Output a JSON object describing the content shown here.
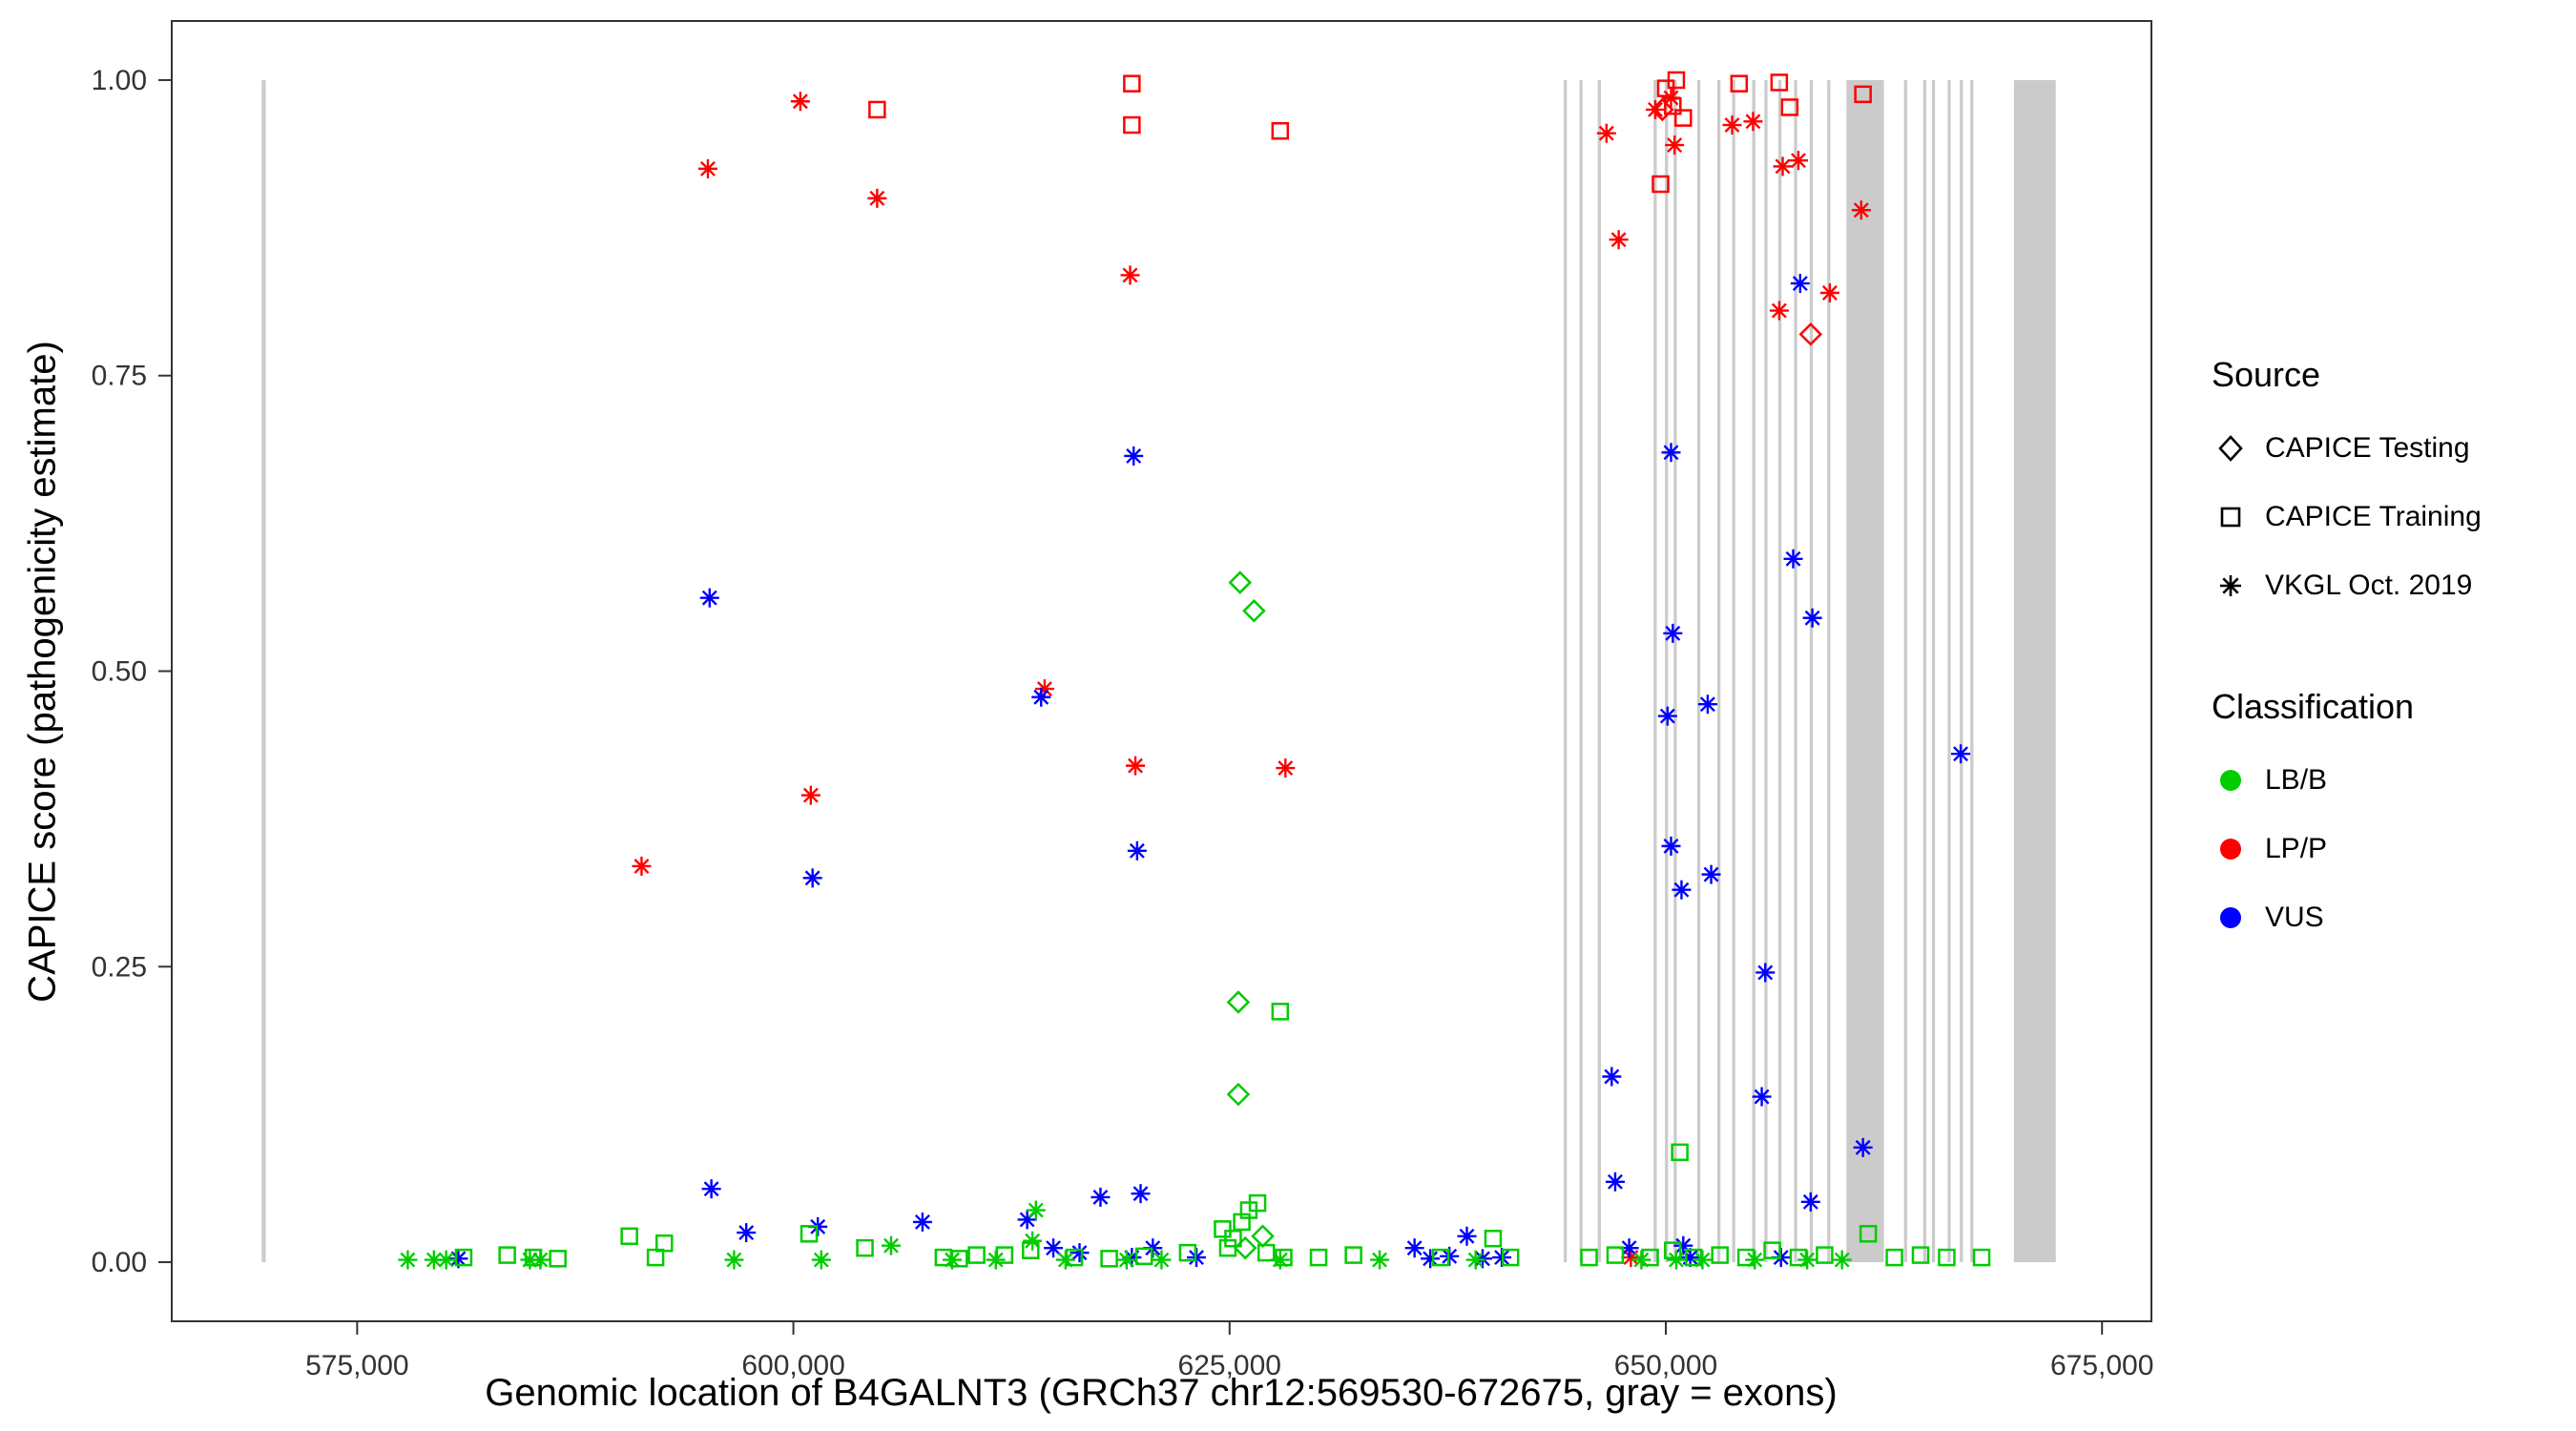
{
  "chart_data": {
    "type": "scatter",
    "title": "",
    "xlabel": "Genomic location of B4GALNT3 (GRCh37 chr12:569530-672675, gray = exons)",
    "ylabel": "CAPICE score (pathogenicity estimate)",
    "xlim": [
      564373,
      677832
    ],
    "ylim": [
      -0.05,
      1.05
    ],
    "grid": false,
    "legend_position": "right",
    "xticks": [
      {
        "v": 575000,
        "label": "575,000"
      },
      {
        "v": 600000,
        "label": "600,000"
      },
      {
        "v": 625000,
        "label": "625,000"
      },
      {
        "v": 650000,
        "label": "650,000"
      },
      {
        "v": 675000,
        "label": "675,000"
      }
    ],
    "yticks": [
      {
        "v": 0.0,
        "label": "0.00"
      },
      {
        "v": 0.25,
        "label": "0.25"
      },
      {
        "v": 0.5,
        "label": "0.50"
      },
      {
        "v": 0.75,
        "label": "0.75"
      },
      {
        "v": 1.0,
        "label": "1.00"
      }
    ],
    "exon_color": "#CBCBCB",
    "exons": [
      [
        569530,
        569760
      ],
      [
        644150,
        644330
      ],
      [
        645050,
        645230
      ],
      [
        646100,
        646280
      ],
      [
        649300,
        649480
      ],
      [
        649950,
        650130
      ],
      [
        650450,
        650630
      ],
      [
        651800,
        651980
      ],
      [
        652950,
        653130
      ],
      [
        653800,
        653980
      ],
      [
        654950,
        655130
      ],
      [
        655650,
        655830
      ],
      [
        656450,
        656630
      ],
      [
        657350,
        657530
      ],
      [
        658250,
        658430
      ],
      [
        659250,
        659430
      ],
      [
        660350,
        662500
      ],
      [
        663650,
        663830
      ],
      [
        664750,
        664930
      ],
      [
        665250,
        665430
      ],
      [
        666150,
        666330
      ],
      [
        666850,
        667030
      ],
      [
        667450,
        667630
      ],
      [
        669950,
        672350
      ]
    ],
    "legend": {
      "source": {
        "title": "Source",
        "items": [
          {
            "label": "CAPICE Testing",
            "shape": "diamond"
          },
          {
            "label": "CAPICE Training",
            "shape": "square"
          },
          {
            "label": "VKGL Oct. 2019",
            "shape": "asterisk"
          }
        ]
      },
      "classification": {
        "title": "Classification",
        "items": [
          {
            "label": "LB/B",
            "color": "#00CC00"
          },
          {
            "label": "LP/P",
            "color": "#FF0000"
          },
          {
            "label": "VUS",
            "color": "#0000FF"
          }
        ]
      }
    },
    "point_encoding": {
      "source_index": [
        "CAPICE Testing",
        "CAPICE Training",
        "VKGL Oct. 2019"
      ],
      "class_index": [
        "LB/B",
        "LP/P",
        "VUS"
      ],
      "format": "[genomic_location, capice_score, source_index, class_index]"
    },
    "points": [
      [
        595100,
        0.925,
        2,
        1
      ],
      [
        600400,
        0.982,
        2,
        1
      ],
      [
        604800,
        0.9,
        2,
        1
      ],
      [
        619300,
        0.835,
        2,
        1
      ],
      [
        614400,
        0.485,
        2,
        1
      ],
      [
        619600,
        0.42,
        2,
        1
      ],
      [
        628200,
        0.418,
        2,
        1
      ],
      [
        601000,
        0.395,
        2,
        1
      ],
      [
        591300,
        0.335,
        2,
        1
      ],
      [
        646600,
        0.955,
        2,
        1
      ],
      [
        647300,
        0.865,
        2,
        1
      ],
      [
        649400,
        0.975,
        2,
        1
      ],
      [
        650300,
        0.985,
        2,
        1
      ],
      [
        650500,
        0.945,
        2,
        1
      ],
      [
        653800,
        0.962,
        2,
        1
      ],
      [
        655000,
        0.965,
        2,
        1
      ],
      [
        656700,
        0.927,
        2,
        1
      ],
      [
        657600,
        0.932,
        2,
        1
      ],
      [
        656500,
        0.805,
        2,
        1
      ],
      [
        659400,
        0.82,
        2,
        1
      ],
      [
        661200,
        0.89,
        2,
        1
      ],
      [
        648000,
        0.004,
        2,
        1
      ],
      [
        604800,
        0.975,
        1,
        1
      ],
      [
        619400,
        0.997,
        1,
        1
      ],
      [
        619400,
        0.962,
        1,
        1
      ],
      [
        627900,
        0.957,
        1,
        1
      ],
      [
        650000,
        0.993,
        1,
        1
      ],
      [
        650600,
        1.0,
        1,
        1
      ],
      [
        650400,
        0.978,
        1,
        1
      ],
      [
        649700,
        0.912,
        1,
        1
      ],
      [
        651000,
        0.968,
        1,
        1
      ],
      [
        654200,
        0.997,
        1,
        1
      ],
      [
        656500,
        0.998,
        1,
        1
      ],
      [
        657100,
        0.977,
        1,
        1
      ],
      [
        661300,
        0.988,
        1,
        1
      ],
      [
        658300,
        0.785,
        0,
        1
      ],
      [
        649800,
        0.975,
        0,
        1
      ],
      [
        595200,
        0.562,
        2,
        2
      ],
      [
        619500,
        0.682,
        2,
        2
      ],
      [
        614200,
        0.478,
        2,
        2
      ],
      [
        619700,
        0.348,
        2,
        2
      ],
      [
        601100,
        0.325,
        2,
        2
      ],
      [
        595300,
        0.062,
        2,
        2
      ],
      [
        650300,
        0.685,
        2,
        2
      ],
      [
        657700,
        0.828,
        2,
        2
      ],
      [
        657300,
        0.595,
        2,
        2
      ],
      [
        658400,
        0.545,
        2,
        2
      ],
      [
        650400,
        0.532,
        2,
        2
      ],
      [
        650100,
        0.462,
        2,
        2
      ],
      [
        652400,
        0.472,
        2,
        2
      ],
      [
        650300,
        0.352,
        2,
        2
      ],
      [
        650900,
        0.315,
        2,
        2
      ],
      [
        652600,
        0.328,
        2,
        2
      ],
      [
        655700,
        0.245,
        2,
        2
      ],
      [
        646900,
        0.157,
        2,
        2
      ],
      [
        655500,
        0.14,
        2,
        2
      ],
      [
        661300,
        0.097,
        2,
        2
      ],
      [
        666900,
        0.43,
        2,
        2
      ],
      [
        647100,
        0.068,
        2,
        2
      ],
      [
        658300,
        0.051,
        2,
        2
      ],
      [
        580800,
        0.003,
        2,
        2
      ],
      [
        597300,
        0.025,
        2,
        2
      ],
      [
        601400,
        0.03,
        2,
        2
      ],
      [
        607400,
        0.034,
        2,
        2
      ],
      [
        613400,
        0.036,
        2,
        2
      ],
      [
        614900,
        0.012,
        2,
        2
      ],
      [
        616400,
        0.008,
        2,
        2
      ],
      [
        617600,
        0.055,
        2,
        2
      ],
      [
        619400,
        0.004,
        2,
        2
      ],
      [
        619900,
        0.058,
        2,
        2
      ],
      [
        620600,
        0.012,
        2,
        2
      ],
      [
        623100,
        0.004,
        2,
        2
      ],
      [
        635600,
        0.012,
        2,
        2
      ],
      [
        637600,
        0.005,
        2,
        2
      ],
      [
        638600,
        0.022,
        2,
        2
      ],
      [
        640600,
        0.004,
        2,
        2
      ],
      [
        647900,
        0.012,
        2,
        2
      ],
      [
        651000,
        0.014,
        2,
        2
      ],
      [
        651400,
        0.004,
        2,
        2
      ],
      [
        656600,
        0.004,
        2,
        2
      ],
      [
        636500,
        0.003,
        2,
        2
      ],
      [
        639500,
        0.003,
        2,
        2
      ],
      [
        625600,
        0.575,
        0,
        0
      ],
      [
        626400,
        0.551,
        0,
        0
      ],
      [
        625500,
        0.22,
        0,
        0
      ],
      [
        625500,
        0.142,
        0,
        0
      ],
      [
        625900,
        0.012,
        0,
        0
      ],
      [
        626900,
        0.022,
        0,
        0
      ],
      [
        627900,
        0.212,
        1,
        0
      ],
      [
        650800,
        0.093,
        1,
        0
      ],
      [
        581100,
        0.004,
        1,
        0
      ],
      [
        583600,
        0.006,
        1,
        0
      ],
      [
        585100,
        0.004,
        1,
        0
      ],
      [
        586500,
        0.003,
        1,
        0
      ],
      [
        590600,
        0.022,
        1,
        0
      ],
      [
        592100,
        0.004,
        1,
        0
      ],
      [
        592600,
        0.016,
        1,
        0
      ],
      [
        600900,
        0.024,
        1,
        0
      ],
      [
        604100,
        0.012,
        1,
        0
      ],
      [
        608600,
        0.004,
        1,
        0
      ],
      [
        609500,
        0.003,
        1,
        0
      ],
      [
        610500,
        0.006,
        1,
        0
      ],
      [
        612100,
        0.006,
        1,
        0
      ],
      [
        613600,
        0.01,
        1,
        0
      ],
      [
        616100,
        0.004,
        1,
        0
      ],
      [
        618100,
        0.003,
        1,
        0
      ],
      [
        620100,
        0.005,
        1,
        0
      ],
      [
        622600,
        0.008,
        1,
        0
      ],
      [
        624600,
        0.028,
        1,
        0
      ],
      [
        624900,
        0.012,
        1,
        0
      ],
      [
        625200,
        0.02,
        1,
        0
      ],
      [
        625700,
        0.034,
        1,
        0
      ],
      [
        626100,
        0.044,
        1,
        0
      ],
      [
        626600,
        0.05,
        1,
        0
      ],
      [
        627100,
        0.008,
        1,
        0
      ],
      [
        628100,
        0.004,
        1,
        0
      ],
      [
        630100,
        0.004,
        1,
        0
      ],
      [
        632100,
        0.006,
        1,
        0
      ],
      [
        637100,
        0.004,
        1,
        0
      ],
      [
        640100,
        0.02,
        1,
        0
      ],
      [
        641100,
        0.004,
        1,
        0
      ],
      [
        645600,
        0.004,
        1,
        0
      ],
      [
        647100,
        0.006,
        1,
        0
      ],
      [
        649100,
        0.004,
        1,
        0
      ],
      [
        650400,
        0.01,
        1,
        0
      ],
      [
        651600,
        0.004,
        1,
        0
      ],
      [
        653100,
        0.006,
        1,
        0
      ],
      [
        654600,
        0.004,
        1,
        0
      ],
      [
        656100,
        0.01,
        1,
        0
      ],
      [
        657600,
        0.004,
        1,
        0
      ],
      [
        659100,
        0.006,
        1,
        0
      ],
      [
        661600,
        0.024,
        1,
        0
      ],
      [
        663100,
        0.004,
        1,
        0
      ],
      [
        664600,
        0.006,
        1,
        0
      ],
      [
        666100,
        0.004,
        1,
        0
      ],
      [
        668100,
        0.004,
        1,
        0
      ],
      [
        577900,
        0.002,
        2,
        0
      ],
      [
        579400,
        0.002,
        2,
        0
      ],
      [
        580100,
        0.002,
        2,
        0
      ],
      [
        584900,
        0.002,
        2,
        0
      ],
      [
        585500,
        0.002,
        2,
        0
      ],
      [
        596600,
        0.002,
        2,
        0
      ],
      [
        601600,
        0.002,
        2,
        0
      ],
      [
        605600,
        0.014,
        2,
        0
      ],
      [
        609100,
        0.002,
        2,
        0
      ],
      [
        611600,
        0.002,
        2,
        0
      ],
      [
        613900,
        0.044,
        2,
        0
      ],
      [
        613700,
        0.018,
        2,
        0
      ],
      [
        615600,
        0.002,
        2,
        0
      ],
      [
        619100,
        0.002,
        2,
        0
      ],
      [
        621100,
        0.002,
        2,
        0
      ],
      [
        627900,
        0.002,
        2,
        0
      ],
      [
        633600,
        0.002,
        2,
        0
      ],
      [
        639100,
        0.002,
        2,
        0
      ],
      [
        648600,
        0.002,
        2,
        0
      ],
      [
        650600,
        0.002,
        2,
        0
      ],
      [
        652100,
        0.002,
        2,
        0
      ],
      [
        655100,
        0.002,
        2,
        0
      ],
      [
        658100,
        0.002,
        2,
        0
      ],
      [
        660100,
        0.002,
        2,
        0
      ]
    ]
  }
}
